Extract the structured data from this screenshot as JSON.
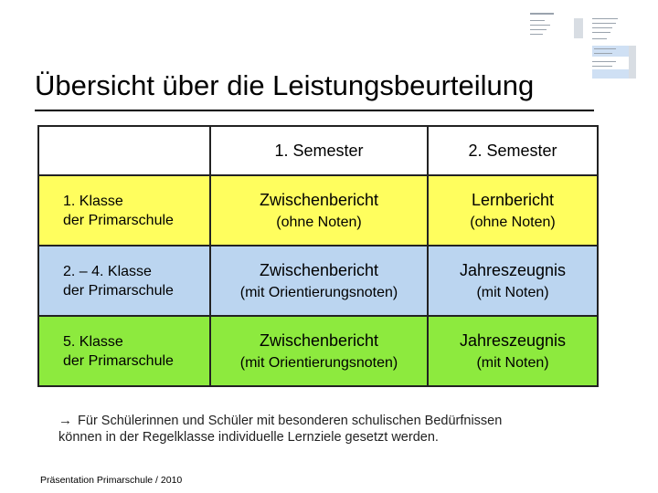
{
  "title": "Übersicht über die Leistungsbeurteilung",
  "thumbnail_icon": "document-thumbnail-icon",
  "table": {
    "headers": [
      "",
      "1. Semester",
      "2. Semester"
    ],
    "rows": [
      {
        "label_line1": "1. Klasse",
        "label_line2": "der Primarschule",
        "sem1_main": "Zwischenbericht",
        "sem1_sub": "(ohne Noten)",
        "sem2_main": "Lernbericht",
        "sem2_sub": "(ohne Noten)",
        "color": "#fffe5e"
      },
      {
        "label_line1": "2. – 4. Klasse",
        "label_line2": "der Primarschule",
        "sem1_main": "Zwischenbericht",
        "sem1_sub": "(mit Orientierungsnoten)",
        "sem2_main": "Jahreszeugnis",
        "sem2_sub": "(mit Noten)",
        "color": "#bbd5f0"
      },
      {
        "label_line1": "5. Klasse",
        "label_line2": "der Primarschule",
        "sem1_main": "Zwischenbericht",
        "sem1_sub": "(mit Orientierungsnoten)",
        "sem2_main": "Jahreszeugnis",
        "sem2_sub": "(mit Noten)",
        "color": "#8dea3e"
      }
    ]
  },
  "note": {
    "arrow": "→",
    "line1": "Für Schülerinnen und Schüler mit besonderen schulischen Bedürfnissen",
    "line2": "können in der Regelklasse individuelle Lernziele gesetzt werden."
  },
  "footer": "Präsentation Primarschule / 2010"
}
